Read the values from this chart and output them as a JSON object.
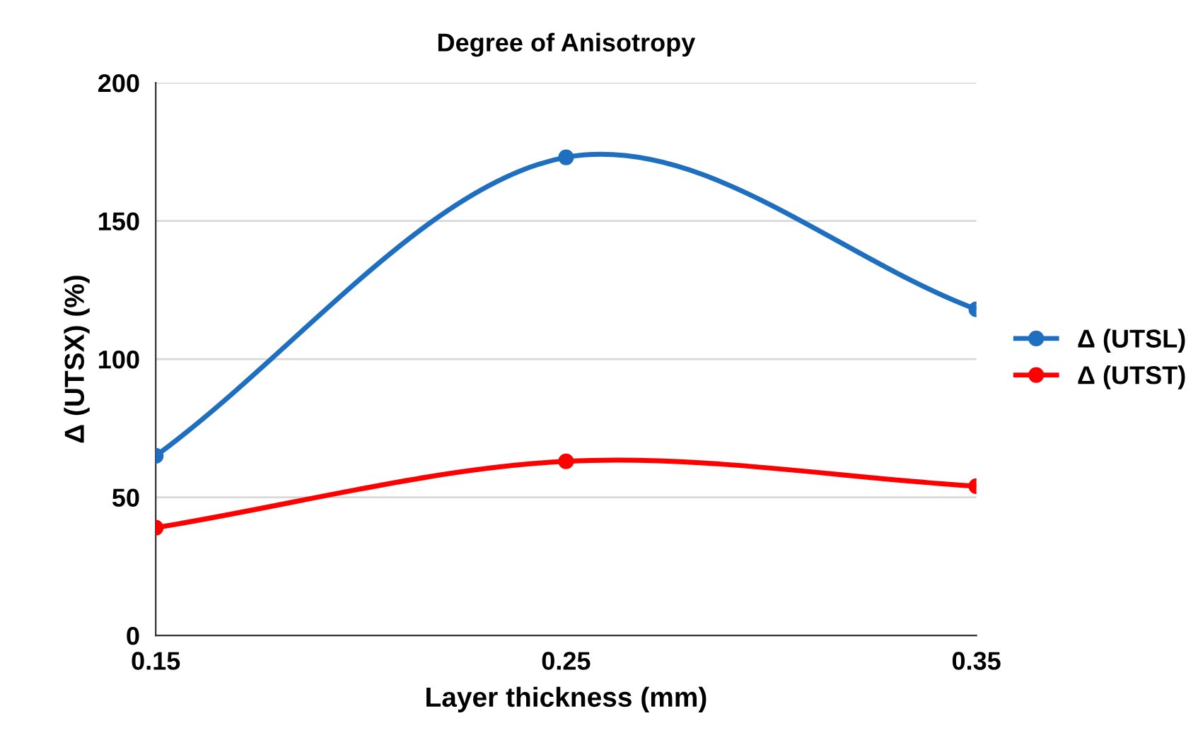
{
  "chart_data": {
    "type": "line",
    "title": "Degree of Anisotropy",
    "xlabel": "Layer thickness (mm)",
    "ylabel": "Δ (UTSX) (%)",
    "x": [
      0.15,
      0.25,
      0.35
    ],
    "series": [
      {
        "name": "Δ (UTSL)",
        "color": "#1f6fc0",
        "values": [
          65,
          173,
          118
        ]
      },
      {
        "name": "Δ (UTST)",
        "color": "#ff0000",
        "values": [
          39,
          63,
          54
        ]
      }
    ],
    "xlim": [
      0.15,
      0.35
    ],
    "xticks": [
      0.15,
      0.25,
      0.35
    ],
    "ylim": [
      0,
      200
    ],
    "yticks": [
      0,
      50,
      100,
      150,
      200
    ],
    "grid": "y",
    "legend": "right",
    "marker": "circle",
    "line_style": "solid"
  }
}
